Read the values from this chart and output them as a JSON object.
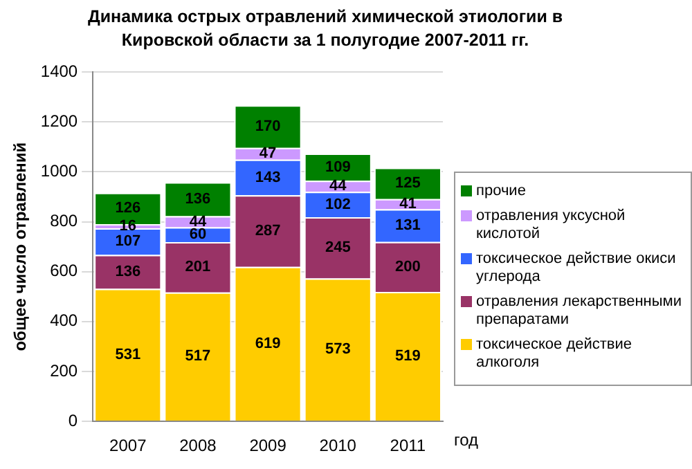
{
  "chart_data": {
    "type": "bar",
    "stacked": true,
    "title": "Динамика острых отравлений химической этиологии в Кировской области за 1 полугодие 2007-2011 гг.",
    "xlabel": "год",
    "ylabel": "общее число отравлений",
    "categories": [
      "2007",
      "2008",
      "2009",
      "2010",
      "2011"
    ],
    "series": [
      {
        "name": "токсическое действие алкоголя",
        "color": "#ffcc00",
        "values": [
          531,
          517,
          619,
          573,
          519
        ]
      },
      {
        "name": "отравления лекарственными препаратами",
        "color": "#993366",
        "values": [
          136,
          201,
          287,
          245,
          200
        ]
      },
      {
        "name": "токсическое действие окиси углерода",
        "color": "#3366ff",
        "values": [
          107,
          60,
          143,
          102,
          131
        ]
      },
      {
        "name": "отравления уксусной кислотой",
        "color": "#cc99ff",
        "values": [
          16,
          44,
          47,
          44,
          41
        ]
      },
      {
        "name": "прочие",
        "color": "#008000",
        "values": [
          126,
          136,
          170,
          109,
          125
        ]
      }
    ],
    "ylim": [
      0,
      1400
    ],
    "yticks": [
      0,
      200,
      400,
      600,
      800,
      1000,
      1200,
      1400
    ],
    "grid": "y",
    "legend": "right",
    "data_labels": true
  }
}
